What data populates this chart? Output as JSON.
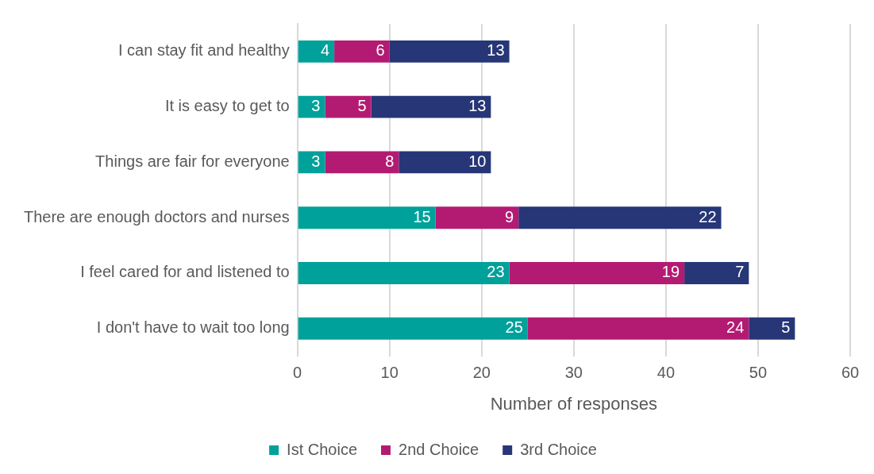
{
  "chart_data": {
    "type": "bar",
    "orientation": "horizontal",
    "stacked": true,
    "xlabel": "Number of responses",
    "categories": [
      "I can stay fit and healthy",
      "It is easy to get to",
      "Things are fair for everyone",
      "There are enough doctors and nurses",
      "I feel cared for and listened to",
      "I don't have to wait too long"
    ],
    "series": [
      {
        "name": "Ist Choice",
        "color": "#00a19a",
        "values": [
          4,
          3,
          3,
          15,
          23,
          25
        ]
      },
      {
        "name": "2nd Choice",
        "color": "#b31b73",
        "values": [
          6,
          5,
          8,
          9,
          19,
          24
        ]
      },
      {
        "name": "3rd Choice",
        "color": "#263677",
        "values": [
          13,
          13,
          10,
          22,
          7,
          5
        ]
      }
    ],
    "xlim": [
      0,
      60
    ],
    "xticks": [
      0,
      10,
      20,
      30,
      40,
      50,
      60
    ],
    "grid": "x",
    "legend": "bottom",
    "data_labels": true
  }
}
